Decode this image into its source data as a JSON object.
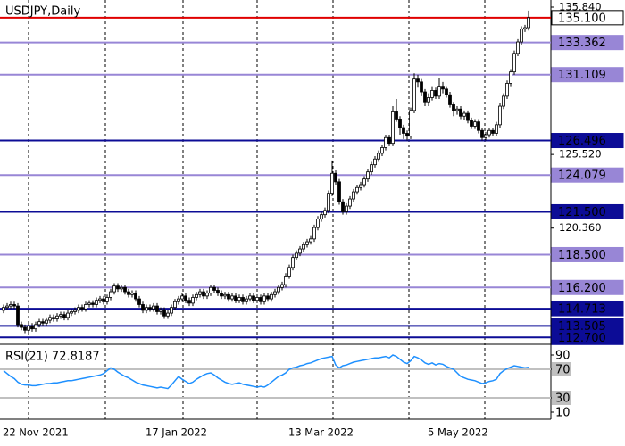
{
  "chart_data": [
    {
      "type": "candlestick",
      "title": "USDJPY,Daily",
      "categories": [
        "22 Nov 2021",
        null,
        null,
        null,
        null,
        null,
        null,
        null,
        null,
        null,
        null,
        null,
        null,
        null,
        null,
        null,
        null,
        null,
        null,
        null,
        null,
        null,
        null,
        null,
        null,
        null,
        null,
        null,
        null,
        null,
        null,
        null,
        null,
        null,
        null,
        null,
        null,
        null,
        null,
        null,
        "17 Jan 2022",
        null,
        null,
        null,
        null,
        null,
        null,
        null,
        null,
        null,
        null,
        null,
        null,
        null,
        null,
        null,
        null,
        null,
        null,
        null,
        null,
        null,
        null,
        null,
        null,
        null,
        null,
        null,
        null,
        null,
        null,
        null,
        null,
        null,
        null,
        null,
        null,
        null,
        null,
        null,
        "13 Mar 2022",
        null,
        null,
        null,
        null,
        null,
        null,
        null,
        null,
        null,
        null,
        null,
        null,
        null,
        null,
        null,
        null,
        null,
        null,
        null,
        null,
        null,
        null,
        null,
        null,
        null,
        null,
        null,
        null,
        null,
        null,
        null,
        null,
        null,
        null,
        null,
        null,
        null,
        null,
        "5 May 2022",
        null,
        null,
        null,
        null,
        null,
        null,
        null,
        null,
        null,
        null,
        null,
        null,
        null,
        null,
        null,
        null,
        null,
        null,
        null,
        null,
        null,
        null,
        null,
        null,
        null,
        null,
        null,
        null
      ],
      "open": [
        114.6,
        114.8,
        114.9,
        115.0,
        114.9,
        113.6,
        113.4,
        113.2,
        113.5,
        113.3,
        113.6,
        113.8,
        113.7,
        113.9,
        114.1,
        114.0,
        114.2,
        114.3,
        114.1,
        114.4,
        114.5,
        114.6,
        114.8,
        114.7,
        115.0,
        115.1,
        115.0,
        115.3,
        115.4,
        115.2,
        115.5,
        115.9,
        116.3,
        116.1,
        116.2,
        115.9,
        115.7,
        115.8,
        115.4,
        115.0,
        114.6,
        114.8,
        114.7,
        114.9,
        114.5,
        114.6,
        114.2,
        114.4,
        114.8,
        115.2,
        115.4,
        115.6,
        115.3,
        115.1,
        115.5,
        115.7,
        115.9,
        115.6,
        115.8,
        116.2,
        116.0,
        115.8,
        115.6,
        115.7,
        115.4,
        115.6,
        115.3,
        115.5,
        115.2,
        115.4,
        115.6,
        115.3,
        115.5,
        115.2,
        115.6,
        115.4,
        115.7,
        115.9,
        116.2,
        116.4,
        117.0,
        117.6,
        118.3,
        118.6,
        118.9,
        119.2,
        119.4,
        119.6,
        120.4,
        121.0,
        121.3,
        121.6,
        122.8,
        124.2,
        123.6,
        122.2,
        121.5,
        121.9,
        122.4,
        122.9,
        123.2,
        123.4,
        123.8,
        124.3,
        124.8,
        125.2,
        125.6,
        126.0,
        126.7,
        126.3,
        128.5,
        128.0,
        127.4,
        127.0,
        126.8,
        128.6,
        130.8,
        130.6,
        129.9,
        129.2,
        129.5,
        130.0,
        129.6,
        130.3,
        130.1,
        129.7,
        129.0,
        128.6,
        128.7,
        128.2,
        128.4,
        127.9,
        127.5,
        127.8,
        127.2,
        126.7,
        126.9,
        127.2,
        127.0,
        127.6,
        128.9,
        129.6,
        130.5,
        131.3,
        132.6,
        133.4,
        134.3,
        134.4
      ],
      "high": [
        115.0,
        115.1,
        115.2,
        115.2,
        115.1,
        113.8,
        113.6,
        113.7,
        113.7,
        113.8,
        114.0,
        114.0,
        114.1,
        114.3,
        114.3,
        114.4,
        114.5,
        114.5,
        114.6,
        114.7,
        114.8,
        115.0,
        115.0,
        115.2,
        115.3,
        115.3,
        115.5,
        115.6,
        115.6,
        115.7,
        116.1,
        116.5,
        116.5,
        116.4,
        116.4,
        116.1,
        116.0,
        116.0,
        115.6,
        115.2,
        115.0,
        115.0,
        115.1,
        115.1,
        114.8,
        114.8,
        114.6,
        115.0,
        115.4,
        115.6,
        115.8,
        115.8,
        115.5,
        115.7,
        115.9,
        116.1,
        116.1,
        116.0,
        116.4,
        116.4,
        116.2,
        116.0,
        115.9,
        115.9,
        115.8,
        115.8,
        115.7,
        115.7,
        115.6,
        115.8,
        115.8,
        115.7,
        115.7,
        115.8,
        115.8,
        115.9,
        116.1,
        116.4,
        116.6,
        117.2,
        117.8,
        118.5,
        118.8,
        119.1,
        119.4,
        119.6,
        119.8,
        120.6,
        121.2,
        121.5,
        121.8,
        123.0,
        125.1,
        124.4,
        123.8,
        122.4,
        122.1,
        122.6,
        123.1,
        123.4,
        123.6,
        124.0,
        124.5,
        125.0,
        125.4,
        125.8,
        126.2,
        126.9,
        126.9,
        128.9,
        129.4,
        128.2,
        127.6,
        127.2,
        128.8,
        131.2,
        131.1,
        130.8,
        130.1,
        129.8,
        130.3,
        130.2,
        130.9,
        130.6,
        130.3,
        129.9,
        129.2,
        128.9,
        128.9,
        128.6,
        128.6,
        128.1,
        128.0,
        128.0,
        127.4,
        127.1,
        127.4,
        127.4,
        127.8,
        129.1,
        129.8,
        130.7,
        131.5,
        132.8,
        133.6,
        134.5,
        134.6,
        135.6
      ],
      "low": [
        114.4,
        114.6,
        114.7,
        114.7,
        113.4,
        113.2,
        113.0,
        113.0,
        113.1,
        113.1,
        113.4,
        113.5,
        113.5,
        113.7,
        113.8,
        113.8,
        114.0,
        113.9,
        113.9,
        114.2,
        114.3,
        114.4,
        114.5,
        114.5,
        114.8,
        114.8,
        114.8,
        115.1,
        115.0,
        115.0,
        115.3,
        115.7,
        115.9,
        115.9,
        115.7,
        115.5,
        115.5,
        115.2,
        114.8,
        114.4,
        114.4,
        114.5,
        114.5,
        114.3,
        114.3,
        114.0,
        114.0,
        114.2,
        114.6,
        115.0,
        115.2,
        115.1,
        114.9,
        114.9,
        115.3,
        115.5,
        115.4,
        115.4,
        115.6,
        115.8,
        115.6,
        115.4,
        115.4,
        115.2,
        115.2,
        115.1,
        115.1,
        115.0,
        115.0,
        115.2,
        115.1,
        115.1,
        115.0,
        115.0,
        115.2,
        115.2,
        115.5,
        115.7,
        116.0,
        116.2,
        116.8,
        117.4,
        118.1,
        118.4,
        118.7,
        119.0,
        119.2,
        119.4,
        120.2,
        120.8,
        121.1,
        121.4,
        122.6,
        123.4,
        122.0,
        121.3,
        121.3,
        121.7,
        122.2,
        122.7,
        123.0,
        123.2,
        123.6,
        124.1,
        124.6,
        125.0,
        125.4,
        125.8,
        126.1,
        126.1,
        127.8,
        126.9,
        126.6,
        126.5,
        126.6,
        128.4,
        130.2,
        129.6,
        128.9,
        128.9,
        129.3,
        129.4,
        129.4,
        129.8,
        129.5,
        128.8,
        128.2,
        128.3,
        128.0,
        127.9,
        127.7,
        127.3,
        127.3,
        127.0,
        126.5,
        126.5,
        126.7,
        126.8,
        126.8,
        127.4,
        128.7,
        129.4,
        130.3,
        131.1,
        132.4,
        133.2,
        134.1,
        134.2
      ],
      "close": [
        114.8,
        114.9,
        115.0,
        114.9,
        113.6,
        113.4,
        113.2,
        113.5,
        113.3,
        113.6,
        113.8,
        113.7,
        113.9,
        114.1,
        114.0,
        114.2,
        114.3,
        114.1,
        114.4,
        114.5,
        114.6,
        114.8,
        114.7,
        115.0,
        115.1,
        115.0,
        115.3,
        115.4,
        115.2,
        115.5,
        115.9,
        116.3,
        116.1,
        116.2,
        115.9,
        115.7,
        115.8,
        115.4,
        115.0,
        114.6,
        114.8,
        114.7,
        114.9,
        114.5,
        114.6,
        114.2,
        114.4,
        114.8,
        115.2,
        115.4,
        115.6,
        115.3,
        115.1,
        115.5,
        115.7,
        115.9,
        115.6,
        115.8,
        116.2,
        116.0,
        115.8,
        115.6,
        115.7,
        115.4,
        115.6,
        115.3,
        115.5,
        115.2,
        115.4,
        115.6,
        115.3,
        115.5,
        115.2,
        115.6,
        115.4,
        115.7,
        115.9,
        116.2,
        116.4,
        117.0,
        117.6,
        118.3,
        118.6,
        118.9,
        119.2,
        119.4,
        119.6,
        120.4,
        121.0,
        121.3,
        121.6,
        122.8,
        124.2,
        123.6,
        122.2,
        121.5,
        121.9,
        122.4,
        122.9,
        123.2,
        123.4,
        123.8,
        124.3,
        124.8,
        125.2,
        125.6,
        126.0,
        126.7,
        126.3,
        128.5,
        128.0,
        127.4,
        127.0,
        126.8,
        128.6,
        130.8,
        130.6,
        129.9,
        129.2,
        129.5,
        130.0,
        129.6,
        130.3,
        130.1,
        129.7,
        129.0,
        128.6,
        128.7,
        128.2,
        128.4,
        127.9,
        127.5,
        127.8,
        127.2,
        126.7,
        126.9,
        127.2,
        127.0,
        127.6,
        128.9,
        129.6,
        130.5,
        131.3,
        132.6,
        133.4,
        134.3,
        134.4,
        135.1
      ],
      "ylim": [
        112.28,
        136.34
      ],
      "yticks": [
        {
          "value": 135.84,
          "label": "135.840"
        },
        {
          "value": 125.52,
          "label": "125.520"
        },
        {
          "value": 120.36,
          "label": "120.360"
        }
      ],
      "levels": [
        {
          "value": 135.1,
          "label": "135.100",
          "color": "#e00000"
        },
        {
          "value": 133.362,
          "label": "133.362",
          "color": "#9886d6"
        },
        {
          "value": 131.109,
          "label": "131.109",
          "color": "#9886d6"
        },
        {
          "value": 126.496,
          "label": "126.496",
          "color": "#0c0c96"
        },
        {
          "value": 124.079,
          "label": "124.079",
          "color": "#9886d6"
        },
        {
          "value": 121.5,
          "label": "121.500",
          "color": "#0c0c96"
        },
        {
          "value": 118.5,
          "label": "118.500",
          "color": "#9886d6"
        },
        {
          "value": 116.2,
          "label": "116.200",
          "color": "#9886d6"
        },
        {
          "value": 114.713,
          "label": "114.713",
          "color": "#0c0c96"
        },
        {
          "value": 113.505,
          "label": "113.505",
          "color": "#0c0c96"
        },
        {
          "value": 112.7,
          "label": "112.700",
          "color": "#0c0c96"
        }
      ]
    },
    {
      "type": "line",
      "title": "RSI(21) 72.8187",
      "color": "#1e90ff",
      "values": [
        68,
        64,
        60,
        57,
        52,
        49,
        48,
        48,
        47,
        47,
        48,
        49,
        50,
        50,
        51,
        51,
        52,
        53,
        54,
        54,
        55,
        56,
        57,
        58,
        59,
        60,
        61,
        62,
        64,
        68,
        72,
        70,
        66,
        63,
        60,
        58,
        55,
        52,
        50,
        48,
        47,
        46,
        45,
        44,
        45,
        44,
        43,
        48,
        54,
        60,
        56,
        53,
        50,
        52,
        56,
        59,
        62,
        64,
        65,
        62,
        58,
        55,
        52,
        50,
        49,
        50,
        51,
        49,
        48,
        47,
        46,
        45,
        46,
        45,
        48,
        52,
        56,
        60,
        62,
        65,
        70,
        72,
        73,
        75,
        76,
        78,
        79,
        81,
        83,
        85,
        86,
        87,
        88,
        76,
        72,
        75,
        76,
        78,
        80,
        81,
        82,
        83,
        84,
        85,
        86,
        86,
        87,
        88,
        86,
        90,
        88,
        84,
        80,
        78,
        82,
        88,
        86,
        83,
        79,
        77,
        79,
        76,
        78,
        77,
        74,
        72,
        70,
        65,
        60,
        58,
        56,
        55,
        54,
        52,
        50,
        51,
        53,
        54,
        56,
        64,
        68,
        71,
        73,
        75,
        74,
        73,
        72,
        72.8187
      ],
      "ylim": [
        0,
        102.5
      ],
      "yticks": [
        90,
        70,
        30,
        10
      ],
      "levels": [
        70,
        30
      ]
    }
  ]
}
